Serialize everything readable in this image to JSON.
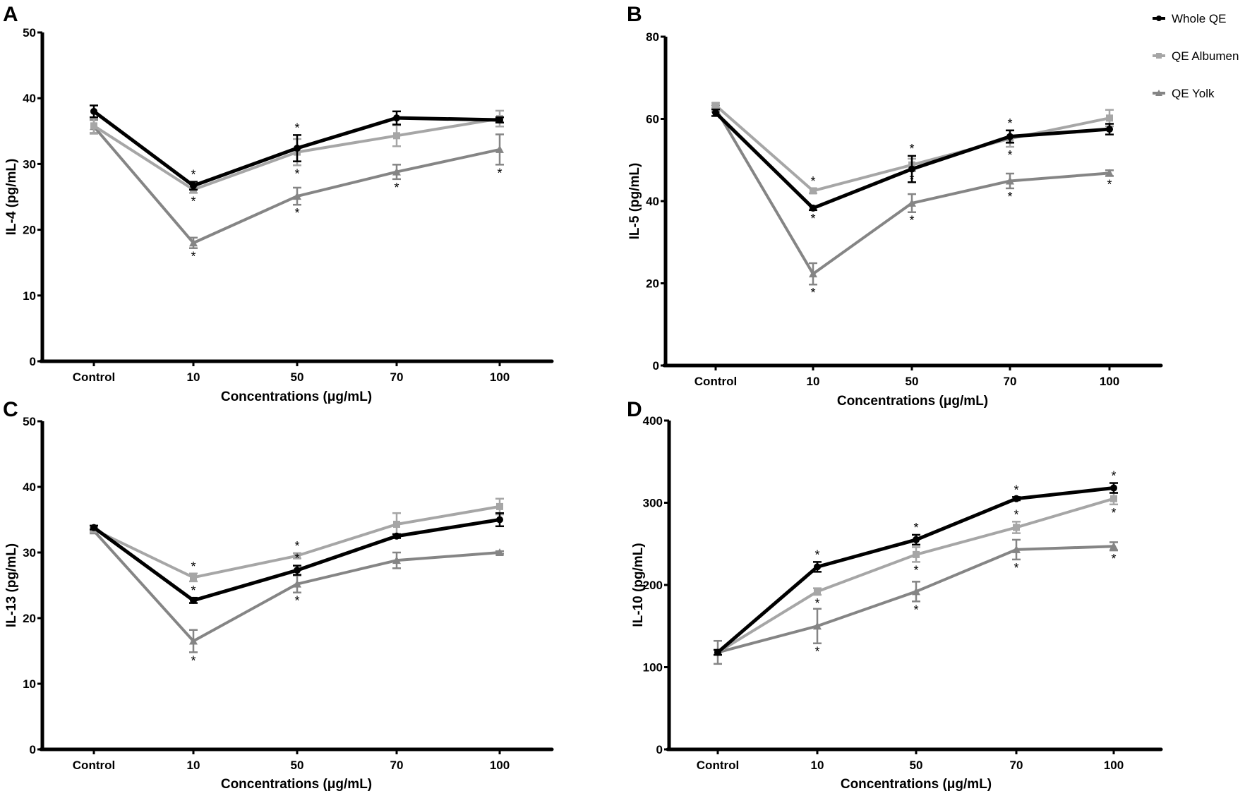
{
  "legend": {
    "placement": "top-right",
    "entries": [
      {
        "name": "Whole QE",
        "color": "#000000",
        "marker": "circle"
      },
      {
        "name": "QE Albumen",
        "color": "#a6a6a6",
        "marker": "square"
      },
      {
        "name": "QE Yolk",
        "color": "#858585",
        "marker": "triangle"
      }
    ]
  },
  "chart_data": [
    {
      "panel": "A",
      "type": "line",
      "xlabel": "Concentrations (μg/mL)",
      "ylabel": "IL-4 (pg/mL)",
      "categories": [
        "Control",
        "10",
        "50",
        "70",
        "100"
      ],
      "ylim": [
        0,
        50
      ],
      "yticks": [
        0,
        10,
        20,
        30,
        40,
        50
      ],
      "grid": false,
      "series": [
        {
          "name": "Whole QE",
          "values": [
            38.0,
            26.7,
            32.4,
            37.0,
            36.7
          ],
          "errors": [
            0.9,
            0.6,
            2.0,
            1.0,
            0.4
          ],
          "stars_above": [
            false,
            true,
            true,
            false,
            false
          ],
          "stars_below": [
            false,
            false,
            false,
            false,
            false
          ]
        },
        {
          "name": "QE Albumen",
          "values": [
            35.8,
            26.1,
            31.8,
            34.3,
            36.9
          ],
          "errors": [
            1.2,
            0.5,
            2.0,
            1.6,
            1.2
          ],
          "stars_above": [
            false,
            false,
            false,
            false,
            false
          ],
          "stars_below": [
            false,
            true,
            true,
            false,
            false
          ]
        },
        {
          "name": "QE Yolk",
          "values": [
            35.7,
            18.0,
            25.1,
            28.8,
            32.2
          ],
          "errors": [
            1.0,
            0.8,
            1.3,
            1.1,
            2.3
          ],
          "stars_above": [
            false,
            false,
            false,
            false,
            false
          ],
          "stars_below": [
            false,
            true,
            true,
            true,
            true
          ]
        }
      ]
    },
    {
      "panel": "B",
      "type": "line",
      "xlabel": "Concentrations (μg/mL)",
      "ylabel": "IL-5 (pg/mL)",
      "categories": [
        "Control",
        "10",
        "50",
        "70",
        "100"
      ],
      "ylim": [
        0,
        80
      ],
      "yticks": [
        0,
        20,
        40,
        60,
        80
      ],
      "grid": false,
      "series": [
        {
          "name": "Whole QE",
          "values": [
            61.5,
            38.3,
            47.8,
            55.7,
            57.5
          ],
          "errors": [
            0.8,
            0.5,
            3.2,
            1.5,
            1.3
          ],
          "stars_above": [
            false,
            false,
            true,
            true,
            false
          ],
          "stars_below": [
            false,
            true,
            false,
            false,
            false
          ]
        },
        {
          "name": "QE Albumen",
          "values": [
            63.3,
            42.5,
            48.8,
            55.2,
            60.2
          ],
          "errors": [
            0.6,
            0.6,
            1.5,
            2.0,
            2.0
          ],
          "stars_above": [
            false,
            true,
            false,
            false,
            false
          ],
          "stars_below": [
            false,
            false,
            true,
            true,
            false
          ]
        },
        {
          "name": "QE Yolk",
          "values": [
            62.5,
            22.3,
            39.5,
            44.9,
            46.8
          ],
          "errors": [
            0.8,
            2.6,
            2.2,
            1.8,
            0.7
          ],
          "stars_above": [
            false,
            false,
            false,
            false,
            false
          ],
          "stars_below": [
            false,
            true,
            true,
            true,
            true
          ]
        }
      ]
    },
    {
      "panel": "C",
      "type": "line",
      "xlabel": "Concentrations (μg/mL)",
      "ylabel": "IL-13 (pg/mL)",
      "categories": [
        "Control",
        "10",
        "50",
        "70",
        "100"
      ],
      "ylim": [
        0,
        50
      ],
      "yticks": [
        0,
        10,
        20,
        30,
        40,
        50
      ],
      "grid": false,
      "series": [
        {
          "name": "Whole QE",
          "values": [
            33.8,
            22.7,
            27.3,
            32.5,
            35.0
          ],
          "errors": [
            0.3,
            0.4,
            0.7,
            0.3,
            1.0
          ],
          "stars_above": [
            false,
            true,
            true,
            false,
            false
          ],
          "stars_below": [
            false,
            false,
            false,
            false,
            false
          ]
        },
        {
          "name": "QE Albumen",
          "values": [
            33.5,
            26.2,
            29.5,
            34.3,
            37.0
          ],
          "errors": [
            0.3,
            0.6,
            0.4,
            1.7,
            1.2
          ],
          "stars_above": [
            false,
            true,
            true,
            false,
            false
          ],
          "stars_below": [
            false,
            false,
            false,
            false,
            false
          ]
        },
        {
          "name": "QE Yolk",
          "values": [
            33.3,
            16.5,
            25.2,
            28.8,
            30.0
          ],
          "errors": [
            0.3,
            1.7,
            1.3,
            1.2,
            0.2
          ],
          "stars_above": [
            false,
            false,
            false,
            false,
            false
          ],
          "stars_below": [
            false,
            true,
            true,
            false,
            false
          ]
        }
      ]
    },
    {
      "panel": "D",
      "type": "line",
      "xlabel": "Concentrations (μg/mL)",
      "ylabel": "IL-10 (pg/mL)",
      "categories": [
        "Control",
        "10",
        "50",
        "70",
        "100"
      ],
      "ylim": [
        0,
        400
      ],
      "yticks": [
        0,
        100,
        200,
        300,
        400
      ],
      "grid": false,
      "series": [
        {
          "name": "Whole QE",
          "values": [
            118,
            222,
            255,
            305,
            318
          ],
          "errors": [
            3,
            6,
            6,
            2,
            6
          ],
          "stars_above": [
            false,
            true,
            true,
            true,
            true
          ],
          "stars_below": [
            false,
            false,
            false,
            false,
            false
          ]
        },
        {
          "name": "QE Albumen",
          "values": [
            118,
            192,
            237,
            270,
            305
          ],
          "errors": [
            3,
            4,
            9,
            7,
            7
          ],
          "stars_above": [
            false,
            false,
            true,
            true,
            false
          ],
          "stars_below": [
            false,
            true,
            true,
            false,
            true
          ]
        },
        {
          "name": "QE Yolk",
          "values": [
            118,
            150,
            192,
            243,
            247
          ],
          "errors": [
            14,
            21,
            12,
            12,
            5
          ],
          "stars_above": [
            false,
            false,
            false,
            false,
            false
          ],
          "stars_below": [
            false,
            true,
            true,
            true,
            true
          ]
        }
      ]
    }
  ]
}
